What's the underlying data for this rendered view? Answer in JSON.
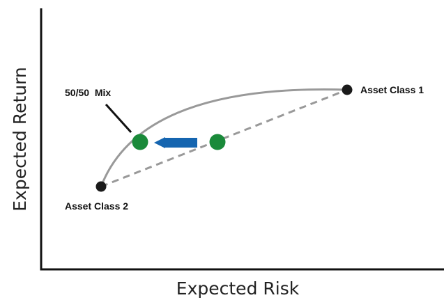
{
  "diagram": {
    "x_axis_label": "Expected Risk",
    "y_axis_label": "Expected Return",
    "labels": {
      "asset_class_1": "Asset Class 1",
      "asset_class_2": "Asset Class 2",
      "mix": "50/50  Mix"
    },
    "colors": {
      "axis": "#111111",
      "frontier_curve": "#999999",
      "straight_line": "#999999",
      "asset_point": "#1a1a1a",
      "mix_point": "#1a8a3a",
      "arrow": "#1565b0"
    }
  }
}
